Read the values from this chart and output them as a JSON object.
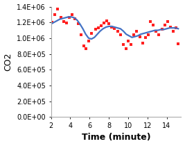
{
  "title": "",
  "xlabel": "Time (minute)",
  "ylabel": "CO2",
  "xlim": [
    2,
    15.5
  ],
  "ylim": [
    0,
    1400000.0
  ],
  "xticks": [
    2,
    4,
    6,
    8,
    10,
    12,
    14
  ],
  "yticks": [
    0.0,
    200000.0,
    400000.0,
    600000.0,
    800000.0,
    1000000.0,
    1200000.0,
    1400000.0
  ],
  "ytick_labels": [
    "0.0E+00",
    "2.0E+05",
    "4.0E+05",
    "6.0E+05",
    "8.0E+05",
    "1.0E+06",
    "1.2E+06",
    "1.4E+06"
  ],
  "emission_color": "#FF2020",
  "mavg_color": "#4472C4",
  "emission_x": [
    2.1,
    2.4,
    2.7,
    3.0,
    3.3,
    3.6,
    3.9,
    4.2,
    4.5,
    4.8,
    5.1,
    5.4,
    5.6,
    5.9,
    6.2,
    6.6,
    6.9,
    7.2,
    7.5,
    7.8,
    8.0,
    8.3,
    8.6,
    8.9,
    9.2,
    9.5,
    9.8,
    10.0,
    10.3,
    10.6,
    10.9,
    11.2,
    11.5,
    11.8,
    12.1,
    12.3,
    12.6,
    12.9,
    13.2,
    13.5,
    13.8,
    14.1,
    14.4,
    14.7,
    15.0,
    15.2
  ],
  "emission_y": [
    1200000.0,
    1300000.0,
    1370000.0,
    1260000.0,
    1210000.0,
    1190000.0,
    1260000.0,
    1300000.0,
    1250000.0,
    1180000.0,
    1040000.0,
    900000.0,
    870000.0,
    960000.0,
    1060000.0,
    1110000.0,
    1130000.0,
    1160000.0,
    1190000.0,
    1220000.0,
    1180000.0,
    1140000.0,
    1120000.0,
    1090000.0,
    1040000.0,
    920000.0,
    870000.0,
    960000.0,
    920000.0,
    1040000.0,
    1090000.0,
    1020000.0,
    940000.0,
    1010000.0,
    1040000.0,
    1210000.0,
    1170000.0,
    1090000.0,
    1040000.0,
    1110000.0,
    1170000.0,
    1210000.0,
    1140000.0,
    1090000.0,
    1130000.0,
    930000.0
  ],
  "mavg_x": [
    2.0,
    2.3,
    2.6,
    2.9,
    3.2,
    3.5,
    3.8,
    4.1,
    4.4,
    4.7,
    5.0,
    5.3,
    5.6,
    5.9,
    6.2,
    6.5,
    6.8,
    7.1,
    7.4,
    7.7,
    8.0,
    8.3,
    8.6,
    8.9,
    9.2,
    9.5,
    9.8,
    10.1,
    10.4,
    10.7,
    11.0,
    11.3,
    11.6,
    11.9,
    12.2,
    12.5,
    12.8,
    13.1,
    13.4,
    13.7,
    14.0,
    14.3,
    14.6,
    14.9,
    15.2
  ],
  "mavg_y": [
    1180000.0,
    1200000.0,
    1220000.0,
    1240000.0,
    1250000.0,
    1260000.0,
    1270000.0,
    1270000.0,
    1260000.0,
    1230000.0,
    1180000.0,
    1120000.0,
    1050000.0,
    1000000.0,
    990000.0,
    1010000.0,
    1050000.0,
    1090000.0,
    1120000.0,
    1140000.0,
    1150000.0,
    1150000.0,
    1140000.0,
    1130000.0,
    1120000.0,
    1090000.0,
    1050000.0,
    1030000.0,
    1010000.0,
    1020000.0,
    1030000.0,
    1050000.0,
    1060000.0,
    1070000.0,
    1080000.0,
    1090000.0,
    1100000.0,
    1100000.0,
    1110000.0,
    1110000.0,
    1120000.0,
    1130000.0,
    1130000.0,
    1130000.0,
    1120000.0
  ],
  "background_color": "#FFFFFF",
  "xlabel_fontsize": 9,
  "ylabel_fontsize": 9,
  "tick_fontsize": 7
}
